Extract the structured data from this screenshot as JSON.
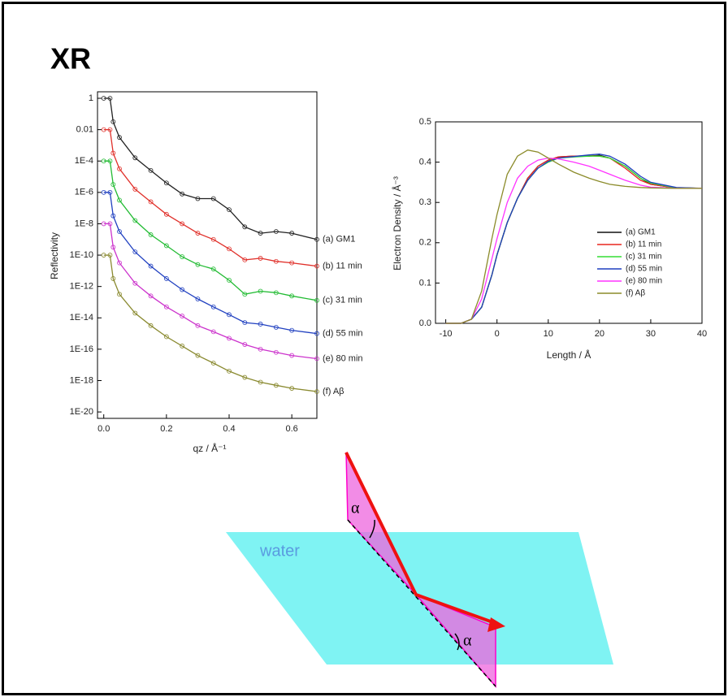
{
  "title": "XR",
  "chart_data": [
    {
      "type": "line",
      "y_label": "Reflectivity",
      "x_label": "qz / Å⁻¹",
      "ylog": true,
      "markers": true,
      "labels_at_end": true,
      "xlim": [
        -0.02,
        0.68
      ],
      "ylim": [
        3.9e-21,
        2.6
      ],
      "xticks": [
        {
          "value": 0,
          "label": "0.0"
        },
        0.2,
        0.4,
        0.6
      ],
      "yticks": [
        1,
        0.01,
        {
          "value": 0.0001,
          "label": "1E-4"
        },
        {
          "value": 1e-06,
          "label": "1E-6"
        },
        {
          "value": 1e-08,
          "label": "1E-8"
        },
        {
          "value": 1e-10,
          "label": "1E-10"
        },
        {
          "value": 1e-12,
          "label": "1E-12"
        },
        {
          "value": 1e-14,
          "label": "1E-14"
        },
        {
          "value": 1e-16,
          "label": "1E-16"
        },
        {
          "value": 1e-18,
          "label": "1E-18"
        },
        {
          "value": 1e-20,
          "label": "1E-20"
        }
      ],
      "x": [
        0,
        0.02,
        0.03,
        0.05,
        0.1,
        0.15,
        0.2,
        0.25,
        0.3,
        0.35,
        0.4,
        0.45,
        0.5,
        0.55,
        0.6,
        0.68
      ],
      "series": [
        {
          "name": "(a) GM1",
          "color": "#222222",
          "values": [
            1,
            1,
            0.032,
            0.0032,
            0.00016,
            2.5e-05,
            4e-06,
            7.9e-07,
            4e-07,
            4e-07,
            7.9e-08,
            6.3e-09,
            2.5e-09,
            3.2e-09,
            2.5e-09,
            1e-09
          ]
        },
        {
          "name": "(b) 11 min",
          "color": "#e0302a",
          "values": [
            0.01,
            0.01,
            0.00032,
            3.2e-05,
            1.6e-06,
            2.5e-07,
            4e-08,
            1e-08,
            2.5e-09,
            1e-09,
            2.5e-10,
            5e-11,
            6.3e-11,
            4e-11,
            3.2e-11,
            2e-11
          ]
        },
        {
          "name": "(c) 31 min",
          "color": "#22bb33",
          "values": [
            0.0001,
            0.0001,
            3.2e-06,
            3.2e-07,
            1.6e-08,
            2e-09,
            4e-10,
            7.9e-11,
            2.5e-11,
            1.3e-11,
            2.5e-12,
            3.2e-13,
            5e-13,
            4e-13,
            2.5e-13,
            1.3e-13
          ]
        },
        {
          "name": "(d) 55 min",
          "color": "#2040c0",
          "values": [
            1e-06,
            1e-06,
            3.2e-08,
            3.2e-09,
            1.6e-10,
            2e-11,
            3.2e-12,
            6.3e-13,
            1.6e-13,
            5e-14,
            1.6e-14,
            5e-15,
            4e-15,
            2.5e-15,
            1.6e-15,
            1e-15
          ]
        },
        {
          "name": "(e) 80 min",
          "color": "#cc33cc",
          "values": [
            1e-08,
            1e-08,
            3.2e-10,
            3.2e-11,
            1.6e-12,
            2.5e-13,
            5e-14,
            1.3e-14,
            3.2e-15,
            1.3e-15,
            5e-16,
            2e-16,
            1e-16,
            6.3e-17,
            4e-17,
            2.5e-17
          ]
        },
        {
          "name": "(f) Aβ",
          "color": "#8a8a30",
          "values": [
            1e-10,
            1e-10,
            3.2e-12,
            3.2e-13,
            2e-14,
            3.2e-15,
            6.3e-16,
            1.6e-16,
            4e-17,
            1.3e-17,
            4e-18,
            1.6e-18,
            7.9e-19,
            5e-19,
            3.2e-19,
            2e-19
          ]
        }
      ]
    },
    {
      "type": "line",
      "y_label": "Electron Density / Å⁻³",
      "x_label": "Length / Å",
      "ylog": false,
      "markers": false,
      "legend": true,
      "xlim": [
        -12,
        40
      ],
      "ylim": [
        0,
        0.5
      ],
      "xticks": [
        -10,
        0,
        10,
        20,
        30,
        40
      ],
      "yticks": [
        {
          "value": 0,
          "label": "0.0"
        },
        0.1,
        0.2,
        0.3,
        0.4,
        0.5
      ],
      "x": [
        -10,
        -7,
        -5,
        -3,
        -1,
        0,
        2,
        4,
        6,
        8,
        10,
        12,
        15,
        18,
        20,
        22,
        25,
        28,
        30,
        35,
        40
      ],
      "series": [
        {
          "name": "(a) GM1",
          "color": "#111111",
          "values": [
            0,
            0,
            0.01,
            0.04,
            0.12,
            0.17,
            0.25,
            0.31,
            0.36,
            0.39,
            0.405,
            0.413,
            0.415,
            0.415,
            0.417,
            0.41,
            0.39,
            0.36,
            0.345,
            0.336,
            0.335
          ]
        },
        {
          "name": "(b) 11 min",
          "color": "#e8261f",
          "values": [
            0,
            0,
            0.01,
            0.04,
            0.12,
            0.17,
            0.25,
            0.31,
            0.36,
            0.39,
            0.405,
            0.413,
            0.415,
            0.416,
            0.415,
            0.41,
            0.385,
            0.355,
            0.345,
            0.336,
            0.335
          ]
        },
        {
          "name": "(c) 31 min",
          "color": "#33dd33",
          "values": [
            0,
            0,
            0.01,
            0.04,
            0.12,
            0.17,
            0.25,
            0.31,
            0.355,
            0.385,
            0.4,
            0.41,
            0.413,
            0.415,
            0.415,
            0.41,
            0.39,
            0.36,
            0.348,
            0.336,
            0.335
          ]
        },
        {
          "name": "(d) 55 min",
          "color": "#1f3fbf",
          "values": [
            0,
            0,
            0.01,
            0.04,
            0.12,
            0.17,
            0.25,
            0.31,
            0.355,
            0.385,
            0.402,
            0.41,
            0.414,
            0.418,
            0.42,
            0.415,
            0.395,
            0.365,
            0.35,
            0.337,
            0.335
          ]
        },
        {
          "name": "(e) 80 min",
          "color": "#ff33ff",
          "values": [
            0,
            0,
            0.01,
            0.06,
            0.16,
            0.21,
            0.3,
            0.36,
            0.39,
            0.405,
            0.41,
            0.408,
            0.4,
            0.39,
            0.38,
            0.37,
            0.355,
            0.343,
            0.338,
            0.335,
            0.335
          ]
        },
        {
          "name": "(f) Aβ",
          "color": "#8b8b2a",
          "values": [
            0,
            0,
            0.01,
            0.08,
            0.21,
            0.27,
            0.37,
            0.415,
            0.43,
            0.425,
            0.41,
            0.395,
            0.375,
            0.36,
            0.352,
            0.345,
            0.34,
            0.337,
            0.336,
            0.335,
            0.335
          ]
        }
      ]
    }
  ],
  "diagram": {
    "water_label": "water",
    "angle_label": "α"
  }
}
